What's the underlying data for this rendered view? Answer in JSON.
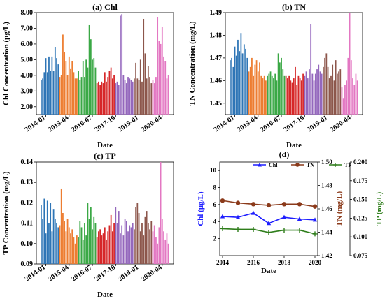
{
  "colors": {
    "year_2014": "#2e75b6",
    "year_2015": "#ed7d31",
    "year_2016": "#3aa845",
    "year_2017": "#d62728",
    "year_2018": "#9467bd",
    "year_2019": "#8c564b",
    "year_2020": "#e377c2",
    "chl_line": "#1f1fff",
    "tn_line": "#8b3a1a",
    "tp_line": "#2e7d1a",
    "axis": "#000000"
  },
  "chart_data": [
    {
      "panel": "a",
      "type": "bar",
      "title": "(a) Chl",
      "xlabel": "Date",
      "ylabel": "Chl Concentration (μg/L)",
      "ylim": [
        1.5,
        8.0
      ],
      "yticks": [
        "2.00",
        "3.00",
        "4.00",
        "5.00",
        "6.00",
        "7.00",
        "8.00"
      ],
      "xticks": [
        "2014-01",
        "2015-04",
        "2016-07",
        "2017-10",
        "2019-01",
        "2020-04"
      ],
      "tick_positions": [
        3,
        18,
        33,
        48,
        63,
        78
      ],
      "years": [
        "2014",
        "2015",
        "2016",
        "2017",
        "2018",
        "2019",
        "2020"
      ],
      "year_bar_counts": [
        12,
        12,
        12,
        12,
        12,
        12,
        11
      ],
      "values": [
        3.7,
        3.8,
        4.2,
        5.1,
        4.2,
        5.2,
        4.3,
        5.2,
        4.3,
        5.8,
        5.1,
        4.7,
        3.9,
        4.0,
        6.6,
        5.5,
        4.9,
        4.0,
        5.2,
        4.4,
        4.9,
        4.2,
        3.8,
        3.8,
        4.3,
        3.7,
        3.9,
        4.9,
        3.9,
        5.0,
        4.5,
        7.2,
        6.3,
        5.0,
        5.1,
        4.5,
        3.5,
        3.6,
        3.4,
        3.6,
        3.5,
        4.2,
        3.6,
        3.9,
        4.3,
        4.5,
        3.8,
        4.0,
        3.5,
        3.6,
        3.4,
        7.8,
        7.9,
        4.0,
        3.7,
        3.5,
        3.9,
        3.8,
        3.7,
        3.6,
        3.8,
        4.8,
        3.8,
        3.7,
        5.0,
        3.6,
        7.6,
        5.4,
        3.8,
        4.6,
        3.9,
        3.5,
        3.7,
        3.5,
        3.9,
        7.7,
        6.2,
        6.0,
        7.1,
        5.2,
        4.9,
        3.8,
        4.0
      ]
    },
    {
      "panel": "b",
      "type": "bar",
      "title": "(b) TN",
      "xlabel": "Date",
      "ylabel": "TN Concentration (mg/L)",
      "ylim": [
        1.445,
        1.49
      ],
      "yticks": [
        "1.45",
        "1.46",
        "1.47",
        "1.48",
        "1.49"
      ],
      "xticks": [
        "2014-01",
        "2015-04",
        "2016-07",
        "2017-10",
        "2019-01",
        "2020-04"
      ],
      "tick_positions": [
        3,
        18,
        33,
        48,
        63,
        78
      ],
      "years": [
        "2014",
        "2015",
        "2016",
        "2017",
        "2018",
        "2019",
        "2020"
      ],
      "year_bar_counts": [
        12,
        12,
        12,
        12,
        12,
        12,
        11
      ],
      "values": [
        1.469,
        1.47,
        1.466,
        1.475,
        1.471,
        1.478,
        1.473,
        1.481,
        1.472,
        1.476,
        1.474,
        1.47,
        1.464,
        1.466,
        1.47,
        1.462,
        1.467,
        1.469,
        1.464,
        1.468,
        1.462,
        1.461,
        1.462,
        1.46,
        1.462,
        1.463,
        1.464,
        1.462,
        1.461,
        1.463,
        1.46,
        1.472,
        1.468,
        1.47,
        1.465,
        1.462,
        1.462,
        1.461,
        1.462,
        1.46,
        1.459,
        1.461,
        1.466,
        1.458,
        1.462,
        1.461,
        1.46,
        1.463,
        1.462,
        1.464,
        1.461,
        1.465,
        1.485,
        1.463,
        1.46,
        1.463,
        1.465,
        1.467,
        1.464,
        1.463,
        1.466,
        1.47,
        1.472,
        1.466,
        1.461,
        1.462,
        1.467,
        1.46,
        1.469,
        1.463,
        1.464,
        1.465,
        1.457,
        1.452,
        1.458,
        1.46,
        1.47,
        1.49,
        1.469,
        1.461,
        1.458,
        1.463,
        1.46
      ]
    },
    {
      "panel": "c",
      "type": "bar",
      "title": "(c) TP",
      "xlabel": "Date",
      "ylabel": "TP Concentration (mg/L)",
      "ylim": [
        0.09,
        0.14
      ],
      "yticks": [
        "0.09",
        "0.10",
        "0.11",
        "0.12",
        "0.13",
        "0.14"
      ],
      "xticks": [
        "2014-01",
        "2015-04",
        "2016-07",
        "2017-10",
        "2019-01",
        "2020-04"
      ],
      "tick_positions": [
        3,
        18,
        33,
        48,
        63,
        78
      ],
      "years": [
        "2014",
        "2015",
        "2016",
        "2017",
        "2018",
        "2019",
        "2020"
      ],
      "year_bar_counts": [
        12,
        12,
        12,
        12,
        12,
        12,
        11
      ],
      "values": [
        0.119,
        0.112,
        0.122,
        0.105,
        0.121,
        0.11,
        0.12,
        0.106,
        0.117,
        0.112,
        0.11,
        0.108,
        0.109,
        0.127,
        0.115,
        0.111,
        0.106,
        0.112,
        0.108,
        0.105,
        0.107,
        0.103,
        0.1,
        0.104,
        0.103,
        0.111,
        0.108,
        0.102,
        0.11,
        0.104,
        0.12,
        0.112,
        0.118,
        0.107,
        0.113,
        0.11,
        0.103,
        0.106,
        0.107,
        0.104,
        0.105,
        0.108,
        0.102,
        0.106,
        0.109,
        0.114,
        0.106,
        0.11,
        0.118,
        0.11,
        0.116,
        0.105,
        0.109,
        0.104,
        0.112,
        0.111,
        0.106,
        0.109,
        0.108,
        0.11,
        0.107,
        0.118,
        0.12,
        0.115,
        0.106,
        0.11,
        0.104,
        0.113,
        0.116,
        0.11,
        0.107,
        0.111,
        0.106,
        0.109,
        0.103,
        0.1,
        0.108,
        0.14,
        0.112,
        0.106,
        0.102,
        0.105,
        0.1
      ]
    },
    {
      "panel": "d",
      "type": "line",
      "title": "(d)",
      "xlabel": "Date",
      "x": [
        2014,
        2015,
        2016,
        2017,
        2018,
        2019,
        2020
      ],
      "xticks": [
        "2014",
        "2016",
        "2018",
        "2020"
      ],
      "series": [
        {
          "name": "Chl",
          "axis": "left",
          "ylabel": "Chl (μg/L)",
          "ylim": [
            0,
            11
          ],
          "yticks": [
            "2",
            "4",
            "6",
            "8",
            "10"
          ],
          "values": [
            4.6,
            4.5,
            5.0,
            3.8,
            4.5,
            4.3,
            4.2
          ]
        },
        {
          "name": "TN",
          "axis": "right1",
          "ylabel": "TN (mg/L)",
          "ylim": [
            1.42,
            1.5
          ],
          "yticks": [
            "1.42",
            "1.44",
            "1.46",
            "1.48",
            "1.50"
          ],
          "values": [
            1.467,
            1.465,
            1.464,
            1.463,
            1.464,
            1.464,
            1.462
          ]
        },
        {
          "name": "TP",
          "axis": "right2",
          "ylabel": "TP (mg/L)",
          "ylim": [
            0.075,
            0.2
          ],
          "yticks": [
            "0.075",
            "0.100",
            "0.125",
            "0.150",
            "0.175",
            "0.200"
          ],
          "values": [
            0.111,
            0.11,
            0.11,
            0.106,
            0.109,
            0.109,
            0.104
          ]
        }
      ]
    }
  ]
}
